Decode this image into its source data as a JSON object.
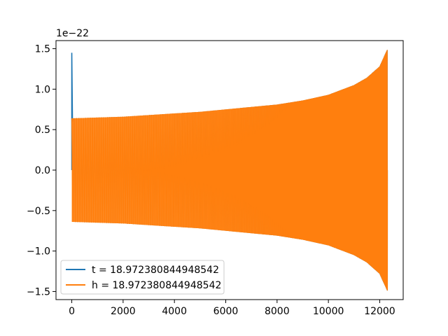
{
  "chart_data": {
    "type": "line",
    "title": "",
    "xlabel": "",
    "ylabel": "",
    "offset_text": "1e−22",
    "xlim": [
      -615,
      12915
    ],
    "ylim": [
      -1.6,
      1.6
    ],
    "x_ticks": [
      0,
      2000,
      4000,
      6000,
      8000,
      10000,
      12000
    ],
    "x_tick_labels": [
      "0",
      "2000",
      "4000",
      "6000",
      "8000",
      "10000",
      "12000"
    ],
    "y_ticks": [
      -1.5,
      -1.0,
      -0.5,
      0.0,
      0.5,
      1.0,
      1.5
    ],
    "y_tick_labels": [
      "−1.5",
      "−1.0",
      "−0.5",
      "0.0",
      "0.5",
      "1.0",
      "1.5"
    ],
    "grid": false,
    "legend_position": "lower-left",
    "series": [
      {
        "name": "t = 18.972380844948542",
        "color": "#1f77b4",
        "spike": {
          "x": 0,
          "y_peak": 1.45,
          "y_start": 0.0
        },
        "envelope": {
          "x": [
            0,
            1000,
            2000,
            3000,
            4000,
            5000,
            6000,
            7000,
            8000,
            9000,
            10000,
            11000,
            11500,
            12000,
            12300
          ],
          "amplitude": [
            0.64,
            0.65,
            0.66,
            0.68,
            0.7,
            0.72,
            0.75,
            0.78,
            0.81,
            0.86,
            0.93,
            1.05,
            1.14,
            1.28,
            1.49
          ]
        }
      },
      {
        "name": "h = 18.972380844948542",
        "color": "#ff7f0e",
        "envelope": {
          "x": [
            0,
            1000,
            2000,
            3000,
            4000,
            5000,
            6000,
            7000,
            8000,
            9000,
            10000,
            11000,
            11500,
            12000,
            12300
          ],
          "amplitude": [
            0.64,
            0.65,
            0.66,
            0.68,
            0.7,
            0.72,
            0.75,
            0.78,
            0.81,
            0.86,
            0.93,
            1.05,
            1.14,
            1.28,
            1.49
          ]
        }
      }
    ]
  }
}
